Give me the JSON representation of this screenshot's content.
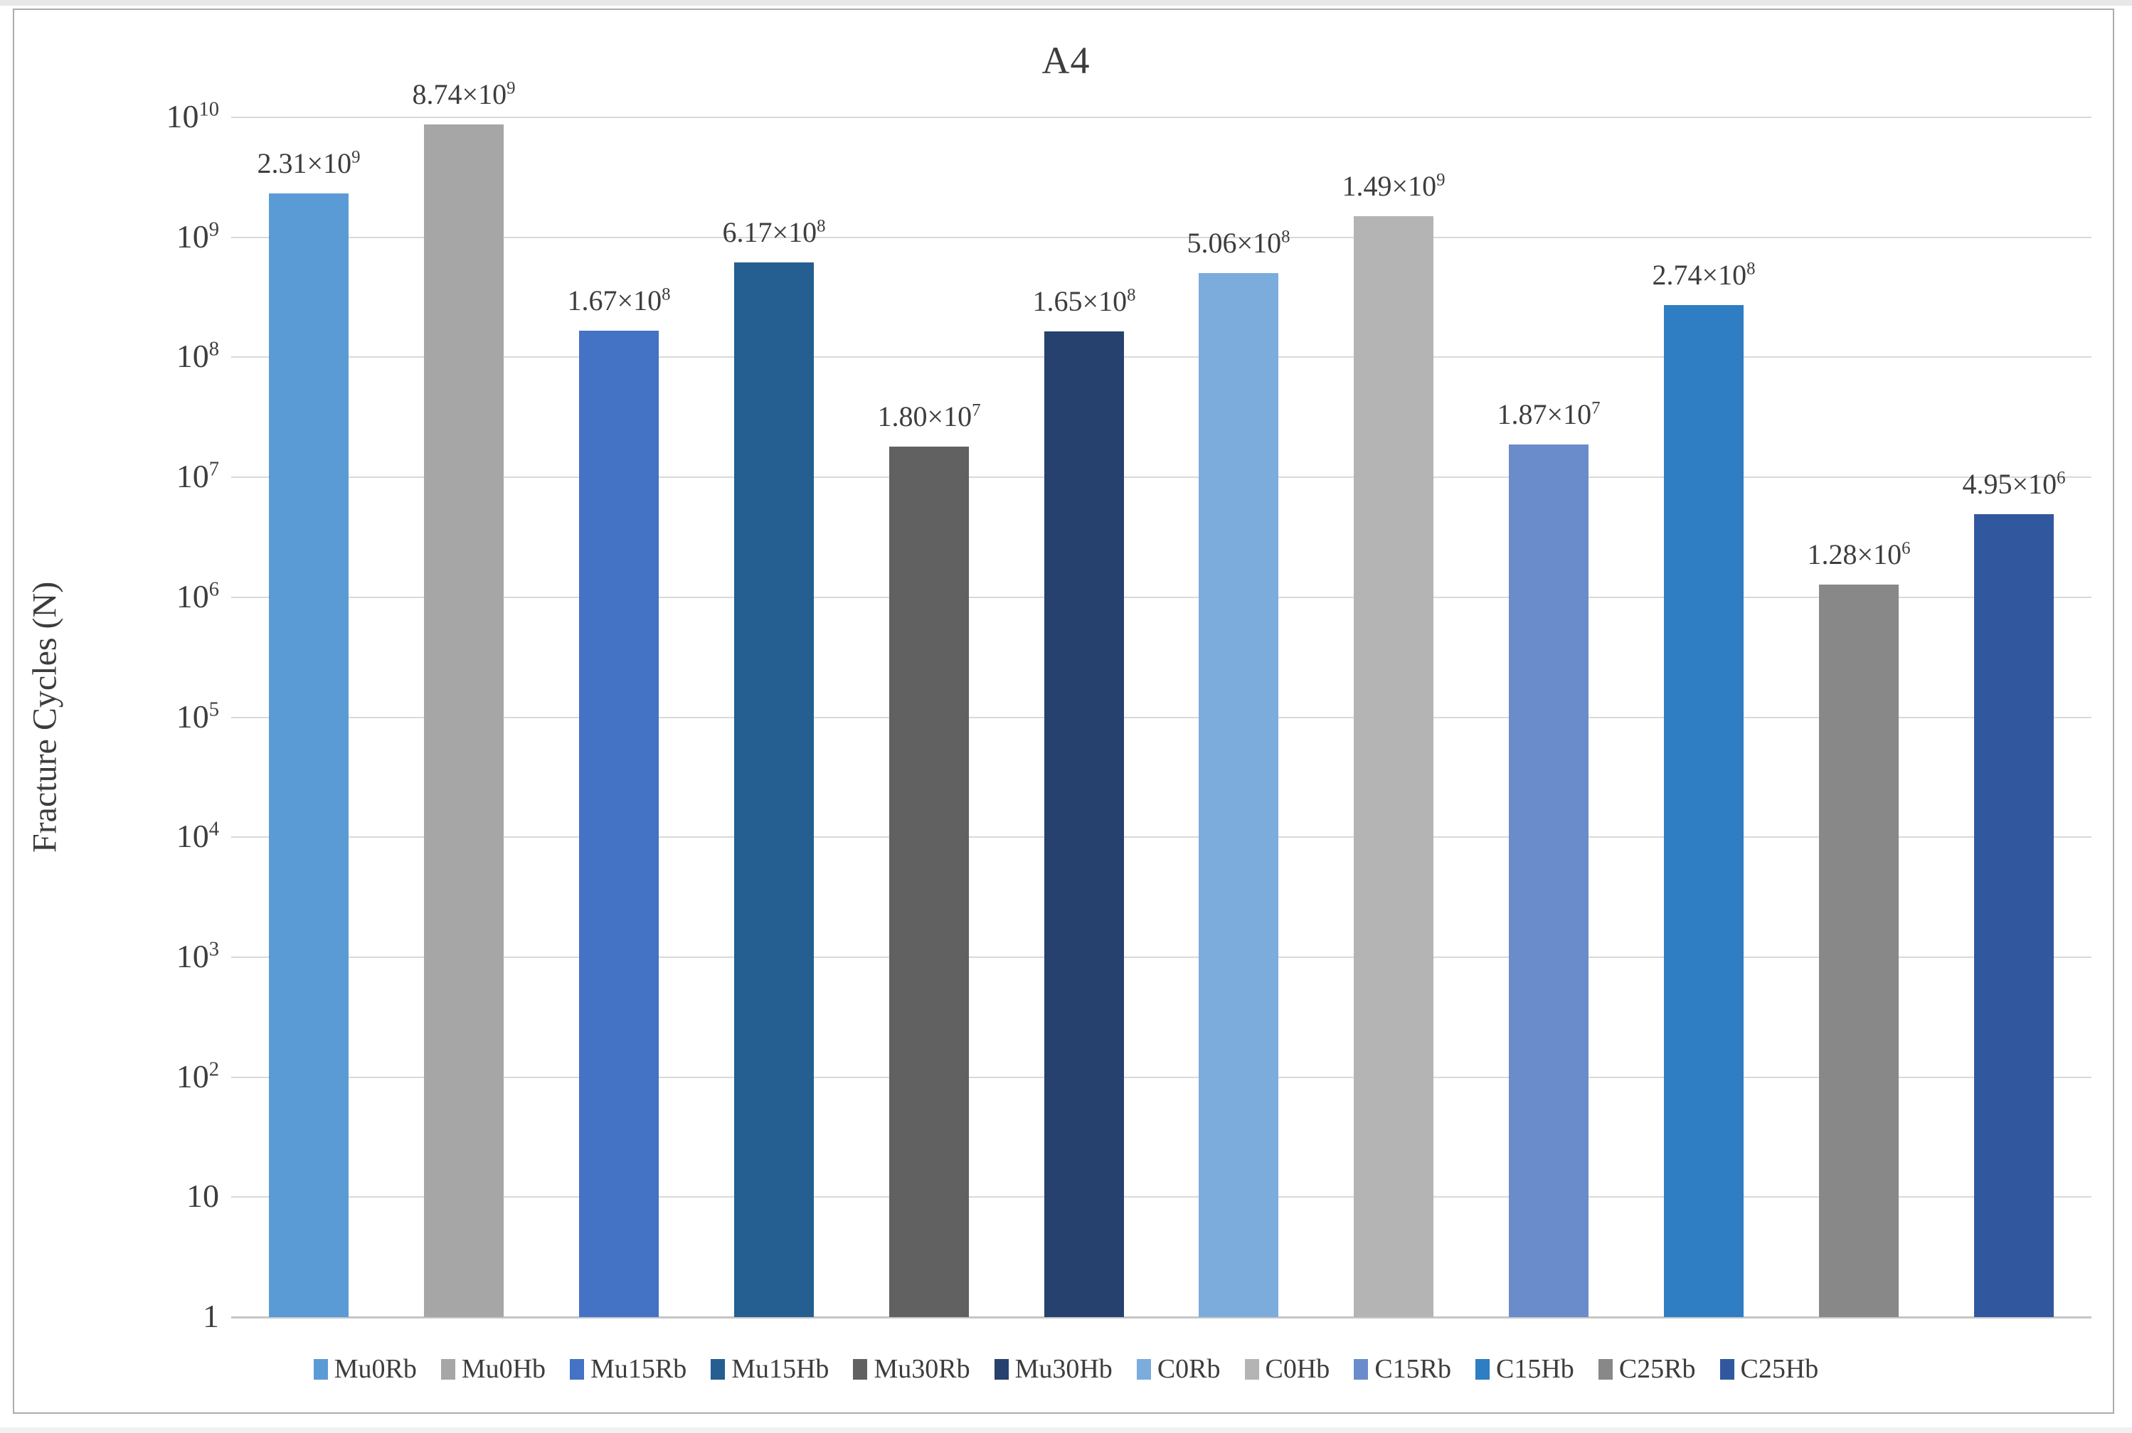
{
  "page": {
    "title": "A4"
  },
  "chart_data": {
    "type": "bar",
    "title": "A4",
    "xlabel": "",
    "ylabel": "Fracture Cycles (N)",
    "y_scale": "log10",
    "ylim": [
      1,
      10000000000
    ],
    "grid": "horizontal",
    "legend_position": "bottom",
    "text_color": "#3d3d3d",
    "gridline_color": "#d9d9d9",
    "categories": [
      "Mu0Rb",
      "Mu0Hb",
      "Mu15Rb",
      "Mu15Hb",
      "Mu30Rb",
      "Mu30Hb",
      "C0Rb",
      "C0Hb",
      "C15Rb",
      "C15Hb",
      "C25Rb",
      "C25Hb"
    ],
    "values": [
      2310000000,
      8740000000,
      167000000,
      617000000,
      18000000,
      165000000,
      506000000,
      1490000000,
      18700000,
      274000000,
      1280000,
      4950000
    ],
    "value_labels": [
      {
        "base": "2.31×10",
        "exp": "9"
      },
      {
        "base": "8.74×10",
        "exp": "9"
      },
      {
        "base": "1.67×10",
        "exp": "8"
      },
      {
        "base": "6.17×10",
        "exp": "8"
      },
      {
        "base": "1.80×10",
        "exp": "7"
      },
      {
        "base": "1.65×10",
        "exp": "8"
      },
      {
        "base": "5.06×10",
        "exp": "8"
      },
      {
        "base": "1.49×10",
        "exp": "9"
      },
      {
        "base": "1.87×10",
        "exp": "7"
      },
      {
        "base": "2.74×10",
        "exp": "8"
      },
      {
        "base": "1.28×10",
        "exp": "6"
      },
      {
        "base": "4.95×10",
        "exp": "6"
      }
    ],
    "bar_colors": [
      "#5B9BD5",
      "#A6A6A6",
      "#4472C4",
      "#255E91",
      "#616161",
      "#27416F",
      "#7BACDC",
      "#B4B4B4",
      "#6B8CCB",
      "#2F7DC2",
      "#888888",
      "#31589E"
    ],
    "yticks": [
      {
        "base": "10",
        "exp": "10",
        "log": 10
      },
      {
        "base": "10",
        "exp": "9",
        "log": 9
      },
      {
        "base": "10",
        "exp": "8",
        "log": 8
      },
      {
        "base": "10",
        "exp": "7",
        "log": 7
      },
      {
        "base": "10",
        "exp": "6",
        "log": 6
      },
      {
        "base": "10",
        "exp": "5",
        "log": 5
      },
      {
        "base": "10",
        "exp": "4",
        "log": 4
      },
      {
        "base": "10",
        "exp": "3",
        "log": 3
      },
      {
        "base": "10",
        "exp": "2",
        "log": 2
      },
      {
        "base": "10",
        "exp": "",
        "log": 1
      },
      {
        "base": "1",
        "exp": "",
        "log": 0
      }
    ],
    "legend": [
      {
        "label": "Mu0Rb",
        "color": "#5B9BD5"
      },
      {
        "label": "Mu0Hb",
        "color": "#A6A6A6"
      },
      {
        "label": "Mu15Rb",
        "color": "#4472C4"
      },
      {
        "label": "Mu15Hb",
        "color": "#255E91"
      },
      {
        "label": "Mu30Rb",
        "color": "#616161"
      },
      {
        "label": "Mu30Hb",
        "color": "#27416F"
      },
      {
        "label": "C0Rb",
        "color": "#7BACDC"
      },
      {
        "label": "C0Hb",
        "color": "#B4B4B4"
      },
      {
        "label": "C15Rb",
        "color": "#6B8CCB"
      },
      {
        "label": "C15Hb",
        "color": "#2F7DC2"
      },
      {
        "label": "C25Rb",
        "color": "#888888"
      },
      {
        "label": "C25Hb",
        "color": "#31589E"
      }
    ]
  }
}
